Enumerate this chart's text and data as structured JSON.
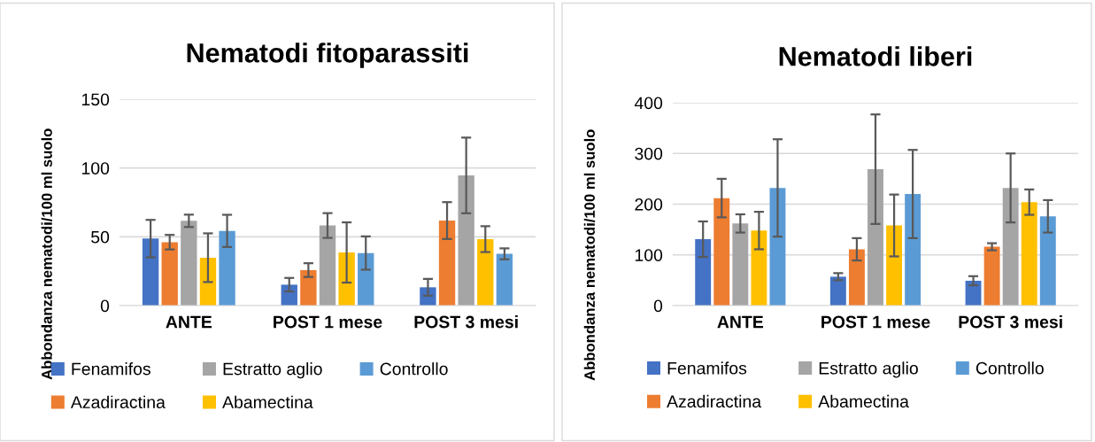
{
  "chart_data": [
    {
      "type": "bar",
      "title": "Nematodi fitoparassiti",
      "ylabel": "Abbondanza nematodi/100 ml suolo",
      "categories": [
        "ANTE",
        "POST 1 mese",
        "POST 3 mesi"
      ],
      "ylim": [
        0,
        150
      ],
      "yticks": [
        0,
        50,
        100,
        150
      ],
      "grid": "y",
      "legend": "bottom",
      "series": [
        {
          "name": "Fenamifos",
          "color": "#4472c4",
          "values": [
            48.7,
            15.2,
            13.3
          ],
          "errors": [
            13.6,
            4.9,
            6.1
          ]
        },
        {
          "name": "Azadiractina",
          "color": "#ed7d31",
          "values": [
            46.1,
            25.8,
            61.8
          ],
          "errors": [
            5.3,
            5.0,
            13.4
          ]
        },
        {
          "name": "Estratto aglio",
          "color": "#a5a5a5",
          "values": [
            61.6,
            58.2,
            94.6
          ],
          "errors": [
            4.5,
            9.0,
            27.5
          ]
        },
        {
          "name": "Abamectina",
          "color": "#ffc000",
          "values": [
            34.8,
            38.6,
            48.3
          ],
          "errors": [
            17.7,
            21.9,
            9.4
          ]
        },
        {
          "name": "Controllo",
          "color": "#5b9bd5",
          "values": [
            54.3,
            38.2,
            37.6
          ],
          "errors": [
            11.7,
            12.1,
            4.0
          ]
        }
      ]
    },
    {
      "type": "bar",
      "title": "Nematodi liberi",
      "ylabel": "Abbondanza nematodi/100 ml suolo",
      "categories": [
        "ANTE",
        "POST 1 mese",
        "POST 3 mesi"
      ],
      "ylim": [
        0,
        400
      ],
      "yticks": [
        0,
        100,
        200,
        300,
        400
      ],
      "grid": "y",
      "legend": "bottom",
      "series": [
        {
          "name": "Fenamifos",
          "color": "#4472c4",
          "values": [
            131,
            57,
            49
          ],
          "errors": [
            35,
            7,
            9
          ]
        },
        {
          "name": "Azadiractina",
          "color": "#ed7d31",
          "values": [
            212,
            111,
            116
          ],
          "errors": [
            38,
            22,
            7
          ]
        },
        {
          "name": "Estratto aglio",
          "color": "#a5a5a5",
          "values": [
            162,
            269,
            232
          ],
          "errors": [
            18,
            108,
            68
          ]
        },
        {
          "name": "Abamectina",
          "color": "#ffc000",
          "values": [
            148,
            158,
            204
          ],
          "errors": [
            37,
            61,
            25
          ]
        },
        {
          "name": "Controllo",
          "color": "#5b9bd5",
          "values": [
            232,
            220,
            176
          ],
          "errors": [
            96,
            87,
            32
          ]
        }
      ]
    }
  ]
}
